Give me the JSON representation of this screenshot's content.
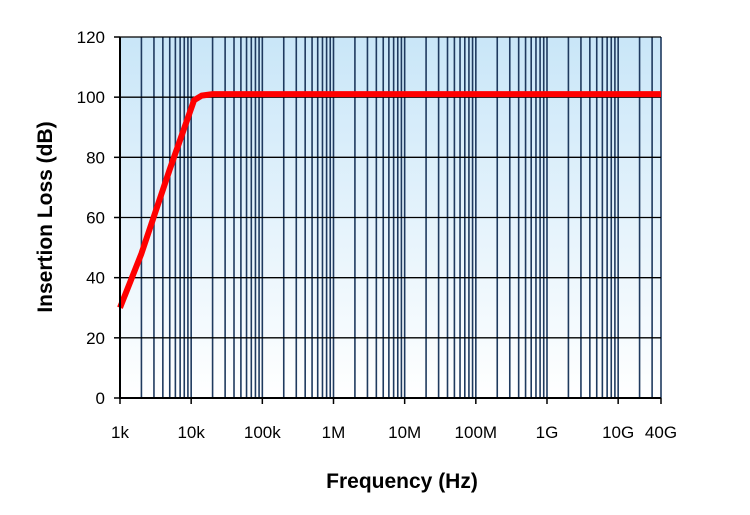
{
  "chart_data": {
    "type": "line",
    "title": "",
    "xlabel": "Frequency (Hz)",
    "ylabel": "Insertion Loss (dB)",
    "x_scale": "log",
    "xlim": [
      1000,
      40000000000
    ],
    "ylim": [
      0,
      120
    ],
    "x_tick_values": [
      1000,
      10000,
      100000,
      1000000,
      10000000,
      100000000,
      1000000000,
      10000000000,
      40000000000
    ],
    "x_tick_labels": [
      "1k",
      "10k",
      "100k",
      "1M",
      "10M",
      "100M",
      "1G",
      "10G",
      "40G"
    ],
    "y_tick_values": [
      0,
      20,
      40,
      60,
      80,
      100,
      120
    ],
    "y_tick_labels": [
      "0",
      "20",
      "40",
      "60",
      "80",
      "100",
      "120"
    ],
    "grid": true,
    "legend": "none",
    "series": [
      {
        "color": "#ff0000",
        "x": [
          1000,
          2000,
          5000,
          11000,
          14000,
          20000,
          100000,
          1000000,
          10000000,
          100000000,
          1000000000,
          10000000000,
          40000000000
        ],
        "y": [
          30,
          48,
          76,
          99,
          100.5,
          101,
          101,
          101,
          101,
          101,
          101,
          101,
          101
        ]
      }
    ],
    "colors": {
      "plot_bg_top": "#c9e6f8",
      "plot_bg_bottom": "#ffffff",
      "grid": "#1f3a5f",
      "line": "#ff0000"
    }
  }
}
